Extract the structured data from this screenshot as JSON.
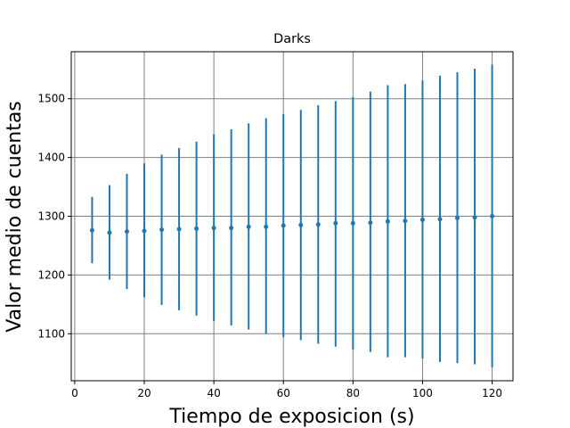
{
  "chart_data": {
    "type": "scatter",
    "title": "Darks",
    "xlabel": "Tiempo de exposicion (s)",
    "ylabel": "Valor medio de cuentas",
    "xlim": [
      -1,
      126
    ],
    "ylim": [
      1020,
      1580
    ],
    "x_ticks": [
      0,
      20,
      40,
      60,
      80,
      100,
      120
    ],
    "y_ticks": [
      1100,
      1200,
      1300,
      1400,
      1500
    ],
    "grid": true,
    "colors": {
      "series": "#1f77b4",
      "grid": "#808080"
    },
    "series": [
      {
        "x": [
          5,
          10,
          15,
          20,
          25,
          30,
          35,
          40,
          45,
          50,
          55,
          60,
          65,
          70,
          75,
          80,
          85,
          90,
          95,
          100,
          105,
          110,
          115,
          120
        ],
        "y": [
          1276,
          1272,
          1274,
          1275,
          1277,
          1278,
          1279,
          1280,
          1280,
          1282,
          1282,
          1284,
          1285,
          1286,
          1288,
          1288,
          1289,
          1291,
          1292,
          1294,
          1295,
          1297,
          1298,
          1300
        ],
        "yerr_low": [
          1220,
          1192,
          1176,
          1162,
          1149,
          1140,
          1131,
          1122,
          1114,
          1107,
          1100,
          1094,
          1089,
          1083,
          1078,
          1073,
          1069,
          1060,
          1060,
          1058,
          1052,
          1050,
          1048,
          1043
        ],
        "yerr_high": [
          1333,
          1353,
          1372,
          1390,
          1405,
          1416,
          1427,
          1439,
          1448,
          1458,
          1467,
          1474,
          1481,
          1489,
          1496,
          1503,
          1512,
          1523,
          1525,
          1531,
          1539,
          1545,
          1551,
          1558
        ]
      }
    ]
  }
}
